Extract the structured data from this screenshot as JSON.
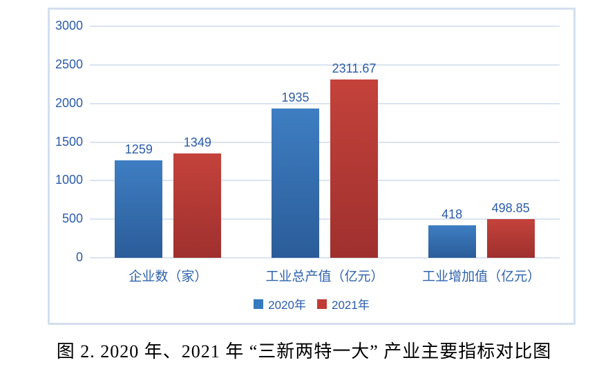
{
  "figure": {
    "caption": "图 2. 2020 年、2021 年 “三新两特一大” 产业主要指标对比图"
  },
  "chart_data": {
    "type": "bar",
    "title": "",
    "categories": [
      "企业数（家）",
      "工业总产值（亿元）",
      "工业增加值（亿元）"
    ],
    "series": [
      {
        "name": "2020年",
        "color": "#3579BE",
        "color_dark": "#2B5C99",
        "values": [
          1259,
          1935,
          418
        ]
      },
      {
        "name": "2021年",
        "color": "#C13B34",
        "color_dark": "#9F302E",
        "values": [
          1349,
          2311.67,
          498.85
        ]
      }
    ],
    "xlabel": "",
    "ylabel": "",
    "ylim": [
      0,
      3000
    ],
    "yticks": [
      0,
      500,
      1000,
      1500,
      2000,
      2500,
      3000
    ],
    "grid": true,
    "legend_position": "bottom",
    "colors": {
      "axis_text": "#2A5CAA",
      "value_label_text": "#2A5CAA",
      "category_text": "#2F63AE",
      "gridline": "#DAE3F1",
      "frame_border": "#D3DFEF"
    }
  }
}
